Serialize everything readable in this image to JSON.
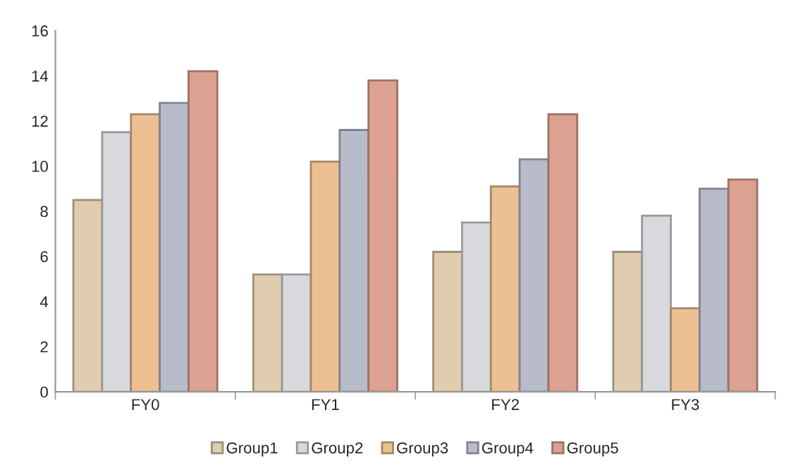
{
  "chart_data": {
    "type": "bar",
    "categories": [
      "FY0",
      "FY1",
      "FY2",
      "FY3"
    ],
    "series": [
      {
        "name": "Group1",
        "color": "#e0ccaf",
        "values": [
          8.5,
          5.2,
          6.2,
          6.2
        ]
      },
      {
        "name": "Group2",
        "color": "#d8d9dc",
        "values": [
          11.5,
          5.2,
          7.5,
          7.8
        ]
      },
      {
        "name": "Group3",
        "color": "#ecc093",
        "values": [
          12.3,
          10.2,
          9.1,
          3.7
        ]
      },
      {
        "name": "Group4",
        "color": "#b8bbc9",
        "values": [
          12.8,
          11.6,
          10.3,
          9.0
        ]
      },
      {
        "name": "Group5",
        "color": "#dca191",
        "values": [
          14.2,
          13.8,
          12.3,
          9.4
        ]
      }
    ],
    "ylim": [
      0,
      16
    ],
    "yticks": [
      0,
      2,
      4,
      6,
      8,
      10,
      12,
      14,
      16
    ],
    "grid": false,
    "legend": "bottom"
  }
}
